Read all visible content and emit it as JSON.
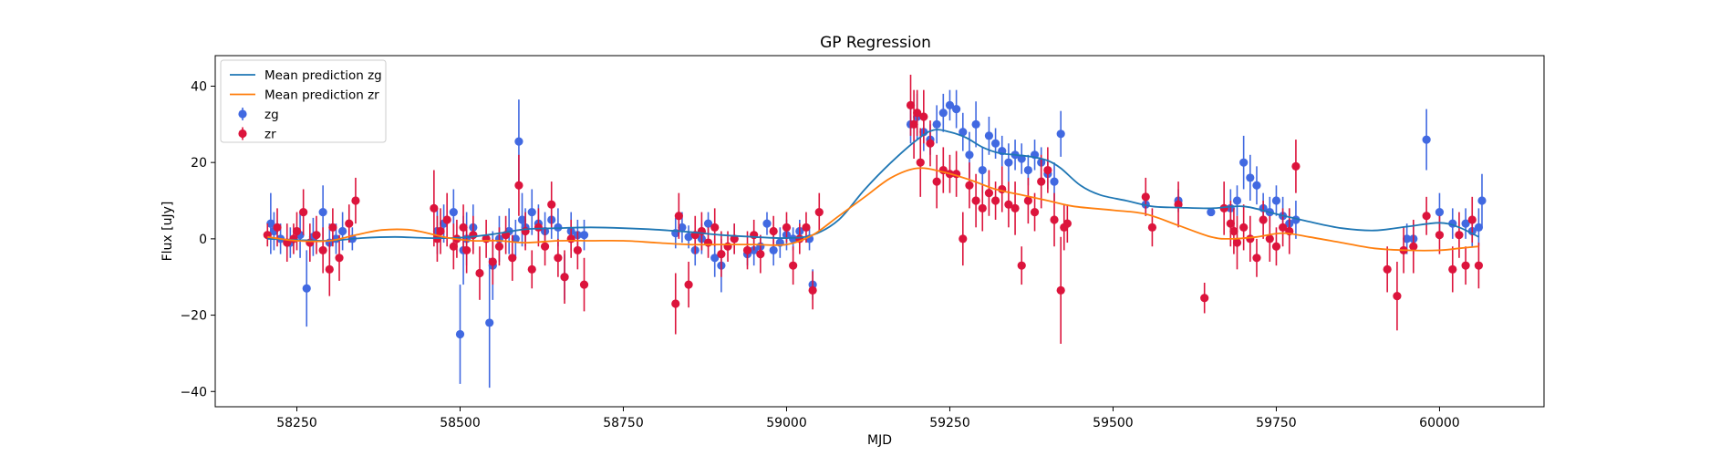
{
  "chart_data": {
    "type": "scatter",
    "title": "GP Regression",
    "xlabel": "MJD",
    "ylabel": "Flux [uJy]",
    "xlim": [
      58125,
      60160
    ],
    "ylim": [
      -44,
      48
    ],
    "xticks": [
      58250,
      58500,
      58750,
      59000,
      59250,
      59500,
      59750,
      60000
    ],
    "yticks": [
      -40,
      -20,
      0,
      20,
      40
    ],
    "grid": false,
    "legend_position": "top-left",
    "legend": [
      {
        "label": "Mean prediction zg",
        "kind": "line",
        "color": "#1f77b4"
      },
      {
        "label": "Mean prediction zr",
        "kind": "line",
        "color": "#ff7f0e"
      },
      {
        "label": "zg",
        "kind": "errorbar",
        "color": "#4169e1"
      },
      {
        "label": "zr",
        "kind": "errorbar",
        "color": "#dc143c"
      }
    ],
    "lines": [
      {
        "name": "Mean prediction zg",
        "color": "#1f77b4",
        "x": [
          58205,
          58250,
          58300,
          58350,
          58400,
          58450,
          58500,
          58550,
          58600,
          58650,
          58700,
          58750,
          58800,
          58850,
          58900,
          58950,
          59000,
          59040,
          59080,
          59120,
          59160,
          59200,
          59225,
          59250,
          59275,
          59300,
          59325,
          59350,
          59375,
          59400,
          59420,
          59450,
          59480,
          59520,
          59560,
          59600,
          59650,
          59700,
          59750,
          59800,
          59850,
          59900,
          59950,
          60000,
          60030,
          60060
        ],
        "y": [
          0,
          -0.3,
          -0.5,
          0.2,
          0.5,
          0.2,
          0.3,
          1.2,
          2.5,
          2.8,
          3,
          2.8,
          2.4,
          1.8,
          1,
          0.5,
          0.2,
          1,
          5,
          13,
          20,
          26,
          28.5,
          28,
          26.5,
          24,
          22.5,
          22,
          21.5,
          20.5,
          18.5,
          14,
          11.5,
          10,
          8.5,
          8.2,
          8,
          8.5,
          6.5,
          4.5,
          2.8,
          2.2,
          3.2,
          4.2,
          3,
          0.5
        ]
      },
      {
        "name": "Mean prediction zr",
        "color": "#ff7f0e",
        "x": [
          58205,
          58250,
          58300,
          58340,
          58380,
          58420,
          58450,
          58480,
          58520,
          58560,
          58600,
          58650,
          58700,
          58750,
          58800,
          58850,
          58900,
          58950,
          59000,
          59040,
          59080,
          59120,
          59160,
          59200,
          59240,
          59280,
          59320,
          59360,
          59400,
          59440,
          59500,
          59550,
          59600,
          59650,
          59680,
          59720,
          59760,
          59800,
          59850,
          59900,
          59950,
          60000,
          60030,
          60060
        ],
        "y": [
          0.5,
          -0.5,
          -0.5,
          1,
          2.3,
          2.4,
          1.5,
          0.3,
          -0.5,
          -0.5,
          -1,
          -0.5,
          -0.5,
          -0.5,
          -1,
          -1.5,
          -1.5,
          -1.5,
          -1.5,
          1,
          6,
          11,
          16,
          18.5,
          17.5,
          15.5,
          13,
          11.5,
          10,
          8.5,
          7.5,
          6.5,
          3.5,
          0.5,
          0,
          0.5,
          1.5,
          0.5,
          -1,
          -2.5,
          -3,
          -3,
          -2.5,
          -2
        ]
      }
    ],
    "series": [
      {
        "name": "zg",
        "color": "#4169e1",
        "x": [
          58210,
          58215,
          58225,
          58240,
          58255,
          58265,
          58275,
          58290,
          58300,
          58310,
          58320,
          58335,
          58465,
          58475,
          58490,
          58500,
          58505,
          58510,
          58520,
          58545,
          58550,
          58560,
          58575,
          58585,
          58590,
          58595,
          58600,
          58610,
          58620,
          58630,
          58640,
          58650,
          58660,
          58670,
          58680,
          58690,
          58830,
          58840,
          58850,
          58860,
          58870,
          58880,
          58890,
          58900,
          58920,
          58940,
          58950,
          58960,
          58970,
          58980,
          58990,
          59000,
          59010,
          59020,
          59035,
          59040,
          59190,
          59200,
          59210,
          59220,
          59230,
          59240,
          59250,
          59260,
          59270,
          59280,
          59290,
          59300,
          59310,
          59320,
          59330,
          59340,
          59350,
          59360,
          59370,
          59380,
          59390,
          59400,
          59410,
          59420,
          59550,
          59600,
          59650,
          59680,
          59690,
          59700,
          59710,
          59720,
          59730,
          59740,
          59750,
          59760,
          59770,
          59780,
          59950,
          59960,
          59980,
          60000,
          60020,
          60040,
          60050,
          60060,
          60065
        ],
        "y": [
          4,
          2,
          0,
          -1,
          1,
          -13,
          0.5,
          7,
          -1,
          0,
          2,
          0,
          2,
          4,
          7,
          -25,
          -3,
          0,
          3,
          -22,
          -7,
          0,
          2,
          0,
          25.5,
          5,
          3,
          7,
          4,
          2,
          5,
          3,
          -10,
          2,
          1,
          1,
          1.5,
          3,
          0.5,
          -3,
          0,
          4,
          -5,
          -7,
          0,
          -4,
          -3,
          -2,
          4,
          -3,
          -1,
          1,
          0,
          2,
          0,
          -12,
          30,
          32,
          28,
          26,
          30,
          33,
          35,
          34,
          28,
          22,
          30,
          18,
          27,
          25,
          23,
          20,
          22,
          21,
          18,
          22,
          20,
          17,
          15,
          27.5,
          9,
          10,
          7,
          8,
          10,
          20,
          16,
          14,
          8,
          7,
          10,
          6,
          4,
          5,
          0,
          0,
          26,
          7,
          4,
          4,
          2,
          3,
          10
        ],
        "err": [
          8,
          5,
          4,
          4,
          6,
          10,
          5,
          7,
          5,
          4,
          5,
          3,
          6,
          5,
          6,
          13,
          9,
          7,
          6,
          17,
          9,
          6,
          6,
          5,
          11,
          7,
          5,
          6,
          5,
          5,
          5,
          5,
          6,
          5,
          4,
          4,
          4,
          4,
          3,
          4,
          4,
          3,
          5,
          7,
          4,
          3,
          4,
          3,
          3,
          4,
          4,
          4,
          3,
          3,
          3,
          4,
          5,
          6,
          5,
          4,
          5,
          5,
          4,
          5,
          5,
          6,
          6,
          6,
          5,
          4,
          4,
          5,
          4,
          4,
          4,
          4,
          4,
          4,
          5,
          6,
          3,
          3,
          1,
          5,
          4,
          7,
          6,
          5,
          4,
          4,
          4,
          5,
          4,
          5,
          4,
          4,
          8,
          5,
          4,
          4,
          4,
          5,
          7
        ]
      },
      {
        "name": "zr",
        "color": "#dc143c",
        "x": [
          58205,
          58220,
          58235,
          58245,
          58250,
          58260,
          58270,
          58280,
          58290,
          58300,
          58305,
          58315,
          58330,
          58340,
          58460,
          58465,
          58470,
          58480,
          58490,
          58495,
          58505,
          58510,
          58520,
          58530,
          58540,
          58550,
          58560,
          58570,
          58580,
          58590,
          58600,
          58610,
          58620,
          58630,
          58640,
          58650,
          58660,
          58670,
          58680,
          58690,
          58830,
          58835,
          58850,
          58860,
          58870,
          58880,
          58890,
          58900,
          58910,
          58920,
          58940,
          58950,
          58960,
          58980,
          59000,
          59010,
          59020,
          59030,
          59040,
          59050,
          59190,
          59195,
          59200,
          59205,
          59210,
          59220,
          59230,
          59240,
          59250,
          59260,
          59270,
          59280,
          59290,
          59300,
          59310,
          59320,
          59330,
          59340,
          59350,
          59360,
          59370,
          59380,
          59390,
          59400,
          59410,
          59420,
          59425,
          59430,
          59550,
          59560,
          59600,
          59640,
          59670,
          59680,
          59685,
          59690,
          59700,
          59710,
          59720,
          59730,
          59740,
          59750,
          59760,
          59770,
          59780,
          59920,
          59935,
          59945,
          59960,
          59980,
          60000,
          60020,
          60030,
          60040,
          60050,
          60060
        ],
        "y": [
          1,
          3,
          -1,
          0,
          2,
          7,
          -1,
          1,
          -3,
          -8,
          3,
          -5,
          4,
          10,
          8,
          0,
          2,
          5,
          -2,
          0,
          3,
          -3,
          1,
          -9,
          0,
          -6,
          -2,
          1,
          -5,
          14,
          2,
          -8,
          3,
          -2,
          9,
          -5,
          -10,
          0,
          -3,
          -12,
          -17,
          6,
          -12,
          1,
          2,
          -1,
          3,
          -4,
          -2,
          0,
          -3,
          1,
          -4,
          2,
          3,
          -7,
          0,
          3,
          -13.5,
          7,
          35,
          30,
          33,
          20,
          32,
          25,
          15,
          18,
          17,
          17,
          0,
          14,
          10,
          8,
          12,
          10,
          13,
          9,
          8,
          -7,
          10,
          7,
          15,
          18,
          5,
          -13.5,
          3,
          4,
          11,
          3,
          9,
          -15.5,
          8,
          4,
          2,
          -1,
          3,
          0,
          -5,
          5,
          0,
          -2,
          3,
          2,
          19,
          -8,
          -15,
          -3,
          -2,
          6,
          1,
          -8,
          1,
          -7,
          5,
          -7
        ],
        "err": [
          3,
          5,
          5,
          4,
          5,
          6,
          5,
          5,
          6,
          7,
          5,
          6,
          5,
          6,
          10,
          6,
          6,
          7,
          6,
          5,
          6,
          6,
          5,
          7,
          5,
          6,
          5,
          5,
          6,
          8,
          5,
          5,
          5,
          5,
          6,
          5,
          7,
          5,
          5,
          7,
          8,
          6,
          6,
          5,
          5,
          4,
          5,
          6,
          4,
          4,
          5,
          4,
          5,
          4,
          4,
          5,
          4,
          4,
          5,
          5,
          8,
          9,
          6,
          9,
          7,
          6,
          7,
          6,
          5,
          6,
          7,
          6,
          7,
          6,
          6,
          5,
          6,
          6,
          7,
          5,
          6,
          5,
          7,
          6,
          7,
          14,
          6,
          5,
          5,
          5,
          6,
          4,
          7,
          6,
          6,
          7,
          6,
          6,
          5,
          5,
          6,
          5,
          5,
          6,
          7,
          6,
          9,
          6,
          7,
          5,
          5,
          6,
          6,
          5,
          6,
          6
        ]
      }
    ]
  }
}
